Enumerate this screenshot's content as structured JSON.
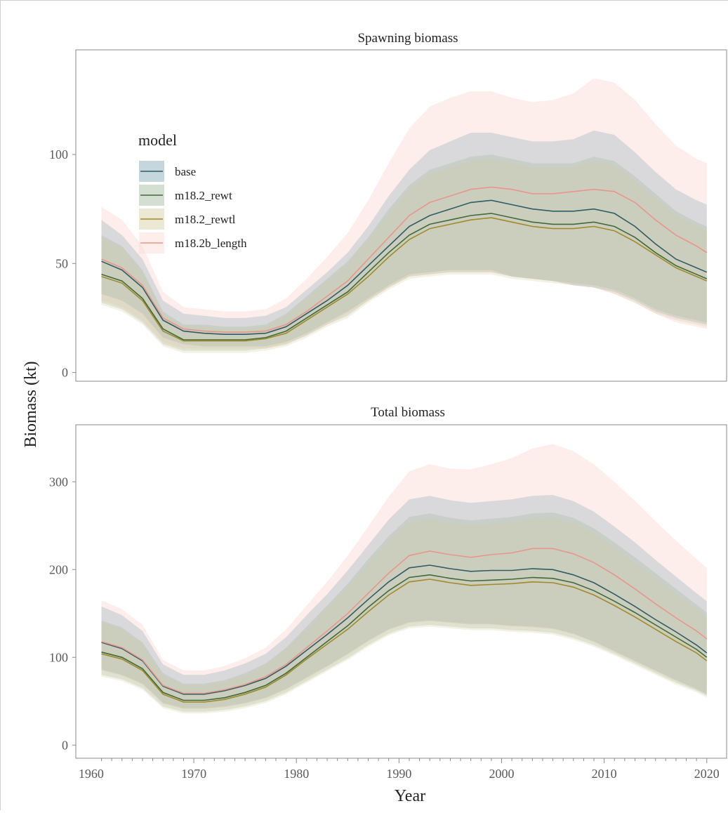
{
  "chart_data": {
    "type": "line",
    "x_label": "Year",
    "y_label": "Biomass (kt)",
    "x_ticks": [
      "1960",
      "1970",
      "1980",
      "1990",
      "2000",
      "2010",
      "2020"
    ],
    "x_range": [
      1958.5,
      2022
    ],
    "legend": {
      "title": "model",
      "position": "top-left inside first panel",
      "entries": [
        {
          "name": "base",
          "color": "#2f5c66",
          "fill": "#7fa6b3"
        },
        {
          "name": "m18.2_rewt",
          "color": "#3f6a3a",
          "fill": "#9eb898"
        },
        {
          "name": "m18.2_rewtl",
          "color": "#a08a2a",
          "fill": "#d8cca0"
        },
        {
          "name": "m18.2b_length",
          "color": "#e8968a",
          "fill": "#fbd9d2"
        }
      ]
    },
    "panels": [
      {
        "title": "Spawning biomass",
        "ylim": [
          -4,
          148
        ],
        "y_ticks": [
          0,
          50,
          100
        ],
        "x": [
          1961,
          1963,
          1965,
          1967,
          1969,
          1971,
          1973,
          1975,
          1977,
          1979,
          1981,
          1983,
          1985,
          1987,
          1989,
          1991,
          1993,
          1995,
          1997,
          1999,
          2001,
          2003,
          2005,
          2007,
          2009,
          2011,
          2013,
          2015,
          2017,
          2019,
          2020
        ],
        "series": [
          {
            "name": "base",
            "values": [
              51,
              47,
              39,
              24,
              19,
              18,
              17.5,
              17.5,
              18,
              21,
              27,
              33,
              40,
              49,
              58,
              67,
              72,
              75,
              78,
              79,
              77,
              75,
              74,
              74,
              75,
              73,
              67,
              59,
              52,
              48,
              46
            ],
            "lower": [
              36,
              33,
              27,
              16,
              13,
              12,
              12,
              12,
              12,
              14,
              18,
              23,
              28,
              34,
              40,
              45,
              46,
              47,
              47,
              47,
              44,
              43,
              42,
              40,
              39,
              37,
              33,
              28,
              25,
              23,
              22
            ],
            "upper": [
              70,
              63,
              52,
              33,
              27,
              26,
              25,
              25,
              26,
              30,
              38,
              46,
              55,
              67,
              81,
              93,
              102,
              106,
              110,
              110,
              108,
              106,
              106,
              107,
              111,
              109,
              101,
              92,
              84,
              79,
              77
            ]
          },
          {
            "name": "m18.2_rewt",
            "values": [
              45,
              42,
              34,
              20,
              15,
              15,
              15,
              15,
              16,
              19,
              25,
              31,
              37,
              46,
              55,
              63,
              68,
              70,
              72,
              73,
              71,
              69,
              68,
              68,
              69,
              67,
              62,
              55,
              49,
              45,
              43
            ],
            "lower": [
              32,
              29,
              23,
              13,
              10,
              10,
              10,
              10,
              11,
              13,
              17,
              22,
              26,
              33,
              39,
              44,
              45,
              46,
              46,
              46,
              44,
              43,
              42,
              41,
              40,
              38,
              34,
              29,
              26,
              24,
              23
            ],
            "upper": [
              63,
              58,
              47,
              28,
              22,
              22,
              21,
              21,
              22,
              27,
              35,
              43,
              51,
              62,
              75,
              86,
              93,
              96,
              99,
              100,
              98,
              96,
              96,
              96,
              99,
              97,
              90,
              82,
              74,
              69,
              67
            ]
          },
          {
            "name": "m18.2_rewtl",
            "values": [
              44,
              41,
              33,
              19,
              14.5,
              14.5,
              14.5,
              14.5,
              15.5,
              18,
              24,
              30,
              36,
              44,
              53,
              61,
              66,
              68,
              70,
              71,
              69,
              67,
              66,
              66,
              67,
              65,
              60,
              54,
              48,
              44,
              42
            ],
            "lower": [
              31,
              28,
              22,
              12,
              9,
              9,
              9,
              9,
              10,
              12,
              16,
              21,
              25,
              32,
              38,
              43,
              44,
              45,
              45,
              45,
              43,
              42,
              41,
              40,
              39,
              36,
              32,
              27,
              24,
              22,
              21
            ],
            "upper": [
              62,
              57,
              46,
              27,
              21,
              21,
              20,
              20,
              21,
              26,
              34,
              42,
              50,
              61,
              73,
              84,
              91,
              94,
              97,
              98,
              96,
              94,
              94,
              94,
              97,
              95,
              88,
              80,
              72,
              67,
              65
            ]
          },
          {
            "name": "m18.2b_length",
            "values": [
              52,
              48,
              40,
              25,
              20,
              19,
              18.5,
              18.5,
              19,
              22,
              28,
              35,
              42,
              52,
              62,
              72,
              78,
              81,
              84,
              85,
              84,
              82,
              82,
              83,
              84,
              83,
              78,
              70,
              63,
              58,
              55
            ],
            "lower": [
              33,
              30,
              24,
              14,
              11,
              11,
              11,
              11,
              11,
              13,
              17,
              22,
              27,
              33,
              39,
              44,
              45,
              46,
              46,
              46,
              44,
              43,
              42,
              40,
              39,
              36,
              32,
              27,
              23,
              21,
              20
            ],
            "upper": [
              76,
              70,
              58,
              37,
              30,
              29,
              28,
              28,
              29,
              34,
              43,
              53,
              64,
              79,
              96,
              112,
              122,
              126,
              129,
              129,
              126,
              124,
              125,
              128,
              135,
              133,
              125,
              114,
              104,
              98,
              96
            ]
          }
        ]
      },
      {
        "title": "Total biomass",
        "ylim": [
          -15,
          365
        ],
        "y_ticks": [
          0,
          100,
          200,
          300
        ],
        "x": [
          1961,
          1963,
          1965,
          1967,
          1969,
          1971,
          1973,
          1975,
          1977,
          1979,
          1981,
          1983,
          1985,
          1987,
          1989,
          1991,
          1993,
          1995,
          1997,
          1999,
          2001,
          2003,
          2005,
          2007,
          2009,
          2011,
          2013,
          2015,
          2017,
          2019,
          2020
        ],
        "series": [
          {
            "name": "base",
            "values": [
              117,
              110,
              96,
              67,
              58,
              58,
              62,
              68,
              76,
              90,
              108,
              126,
              145,
              166,
              186,
              202,
              205,
              201,
              198,
              199,
              199,
              201,
              200,
              194,
              185,
              172,
              158,
              143,
              129,
              114,
              105
            ],
            "lower": [
              86,
              80,
              70,
              48,
              42,
              42,
              44,
              48,
              54,
              64,
              77,
              90,
              104,
              119,
              132,
              140,
              142,
              140,
              138,
              138,
              136,
              135,
              133,
              127,
              118,
              107,
              96,
              85,
              74,
              64,
              58
            ],
            "upper": [
              158,
              148,
              130,
              92,
              80,
              80,
              85,
              93,
              104,
              123,
              148,
              172,
              199,
              228,
              257,
              280,
              284,
              279,
              276,
              278,
              280,
              284,
              285,
              278,
              266,
              249,
              231,
              211,
              192,
              173,
              164
            ]
          },
          {
            "name": "m18.2_rewt",
            "values": [
              106,
              100,
              87,
              60,
              51,
              51,
              54,
              60,
              68,
              82,
              100,
              118,
              136,
              157,
              176,
              191,
              194,
              190,
              187,
              188,
              189,
              191,
              190,
              185,
              176,
              164,
              151,
              137,
              123,
              109,
              100
            ],
            "lower": [
              80,
              75,
              65,
              44,
              38,
              38,
              40,
              44,
              50,
              60,
              73,
              86,
              99,
              114,
              127,
              135,
              137,
              135,
              133,
              133,
              131,
              130,
              128,
              122,
              114,
              104,
              93,
              82,
              71,
              62,
              56
            ],
            "upper": [
              142,
              134,
              117,
              82,
              70,
              70,
              74,
              82,
              93,
              111,
              135,
              159,
              184,
              212,
              238,
              260,
              264,
              259,
              256,
              258,
              260,
              264,
              265,
              259,
              247,
              231,
              214,
              196,
              178,
              160,
              151
            ]
          },
          {
            "name": "m18.2_rewtl",
            "values": [
              104,
              98,
              85,
              58,
              49,
              49,
              52,
              58,
              66,
              80,
              98,
              115,
              132,
              152,
              171,
              186,
              189,
              185,
              182,
              183,
              184,
              186,
              185,
              180,
              171,
              159,
              146,
              132,
              118,
              105,
              96
            ],
            "lower": [
              78,
              73,
              63,
              42,
              36,
              36,
              38,
              42,
              48,
              58,
              71,
              84,
              97,
              112,
              125,
              133,
              135,
              133,
              131,
              131,
              129,
              128,
              126,
              120,
              112,
              102,
              91,
              80,
              69,
              60,
              54
            ],
            "upper": [
              140,
              132,
              115,
              80,
              68,
              68,
              72,
              80,
              91,
              109,
              132,
              156,
              180,
              207,
              233,
              254,
              258,
              253,
              250,
              252,
              254,
              258,
              259,
              253,
              241,
              225,
              208,
              190,
              172,
              155,
              146
            ]
          },
          {
            "name": "m18.2b_length",
            "values": [
              118,
              111,
              97,
              68,
              59,
              59,
              63,
              69,
              78,
              92,
              111,
              130,
              150,
              173,
              196,
              216,
              221,
              217,
              214,
              217,
              219,
              224,
              224,
              218,
              208,
              194,
              178,
              161,
              145,
              130,
              121
            ],
            "lower": [
              85,
              79,
              69,
              47,
              41,
              41,
              43,
              47,
              53,
              63,
              76,
              89,
              103,
              118,
              131,
              139,
              141,
              139,
              137,
              137,
              135,
              134,
              132,
              126,
              117,
              106,
              95,
              84,
              73,
              63,
              57
            ],
            "upper": [
              165,
              155,
              137,
              97,
              85,
              85,
              90,
              99,
              111,
              132,
              159,
              186,
              216,
              249,
              283,
              312,
              320,
              315,
              314,
              320,
              327,
              338,
              343,
              335,
              320,
              300,
              278,
              255,
              233,
              212,
              202
            ]
          }
        ]
      }
    ]
  }
}
